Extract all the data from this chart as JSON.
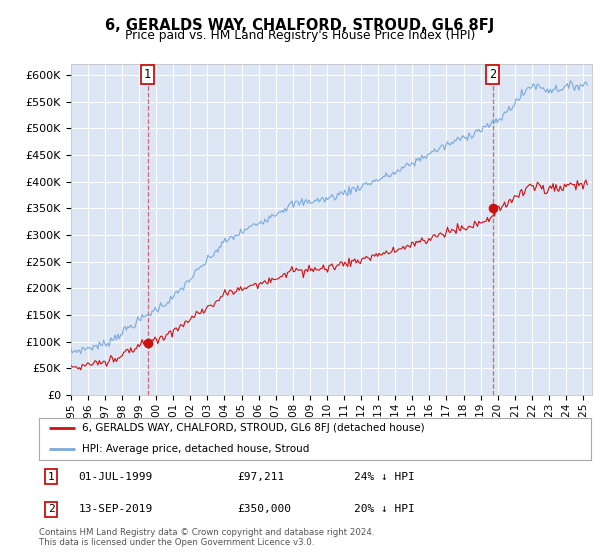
{
  "title": "6, GERALDS WAY, CHALFORD, STROUD, GL6 8FJ",
  "subtitle": "Price paid vs. HM Land Registry's House Price Index (HPI)",
  "ylim": [
    0,
    620000
  ],
  "xlim_start": 1995.0,
  "xlim_end": 2025.5,
  "plot_bg_color": "#dce6f5",
  "grid_color": "#ffffff",
  "transaction1_x": 1999.5,
  "transaction1_price": 97211,
  "transaction2_x": 2019.71,
  "transaction2_price": 350000,
  "hpi_color": "#7aaadd",
  "price_color": "#cc1111",
  "dashed_color": "#cc3333",
  "legend_label1": "6, GERALDS WAY, CHALFORD, STROUD, GL6 8FJ (detached house)",
  "legend_label2": "HPI: Average price, detached house, Stroud",
  "footer": "Contains HM Land Registry data © Crown copyright and database right 2024.\nThis data is licensed under the Open Government Licence v3.0.",
  "yticks": [
    0,
    50000,
    100000,
    150000,
    200000,
    250000,
    300000,
    350000,
    400000,
    450000,
    500000,
    550000,
    600000
  ],
  "ylabels": [
    "£0",
    "£50K",
    "£100K",
    "£150K",
    "£200K",
    "£250K",
    "£300K",
    "£350K",
    "£400K",
    "£450K",
    "£500K",
    "£550K",
    "£600K"
  ],
  "xtick_years": [
    1995,
    1996,
    1997,
    1998,
    1999,
    2000,
    2001,
    2002,
    2003,
    2004,
    2005,
    2006,
    2007,
    2008,
    2009,
    2010,
    2011,
    2012,
    2013,
    2014,
    2015,
    2016,
    2017,
    2018,
    2019,
    2020,
    2021,
    2022,
    2023,
    2024,
    2025
  ],
  "ann1_date": "01-JUL-1999",
  "ann1_price": "£97,211",
  "ann1_pct": "24% ↓ HPI",
  "ann2_date": "13-SEP-2019",
  "ann2_price": "£350,000",
  "ann2_pct": "20% ↓ HPI"
}
